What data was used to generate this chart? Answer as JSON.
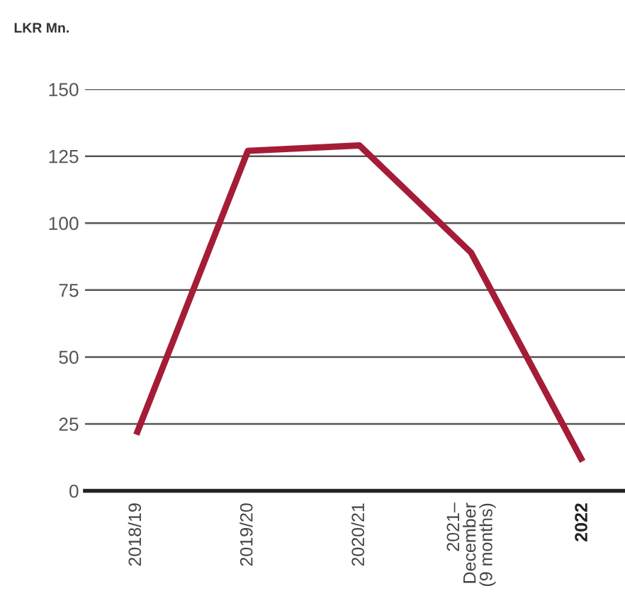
{
  "chart_data": {
    "type": "line",
    "ylabel": "LKR Mn.",
    "categories": [
      "2018/19",
      "2019/20",
      "2020/21",
      "2021–\nDecember\n(9 months)",
      "2022"
    ],
    "series": [
      {
        "color": "#a51c36",
        "values": [
          21,
          127,
          129,
          89,
          11
        ]
      }
    ],
    "ylim": [
      0,
      150
    ],
    "yticks": [
      0,
      25,
      50,
      75,
      100,
      125,
      150
    ],
    "grid": "y",
    "marker": "none",
    "line_style": "solid"
  }
}
